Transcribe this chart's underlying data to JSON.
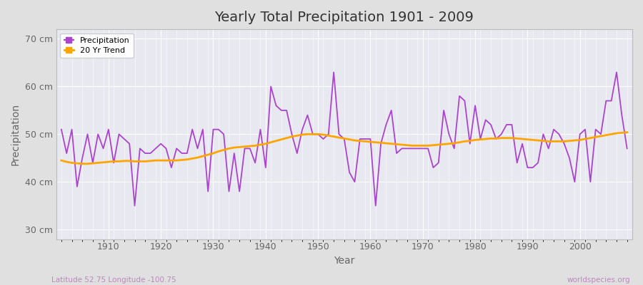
{
  "title": "Yearly Total Precipitation 1901 - 2009",
  "xlabel": "Year",
  "ylabel": "Precipitation",
  "footnote_left": "Latitude 52.75 Longitude -100.75",
  "footnote_right": "worldspecies.org",
  "line_color": "#AA44CC",
  "trend_color": "#FFA500",
  "fig_bg_color": "#E0E0E0",
  "plot_bg_color": "#E8E8F0",
  "ylim": [
    28,
    72
  ],
  "yticks": [
    30,
    40,
    50,
    60,
    70
  ],
  "ytick_labels": [
    "30 cm",
    "40 cm",
    "50 cm",
    "60 cm",
    "70 cm"
  ],
  "years": [
    1901,
    1902,
    1903,
    1904,
    1905,
    1906,
    1907,
    1908,
    1909,
    1910,
    1911,
    1912,
    1913,
    1914,
    1915,
    1916,
    1917,
    1918,
    1919,
    1920,
    1921,
    1922,
    1923,
    1924,
    1925,
    1926,
    1927,
    1928,
    1929,
    1930,
    1931,
    1932,
    1933,
    1934,
    1935,
    1936,
    1937,
    1938,
    1939,
    1940,
    1941,
    1942,
    1943,
    1944,
    1945,
    1946,
    1947,
    1948,
    1949,
    1950,
    1951,
    1952,
    1953,
    1954,
    1955,
    1956,
    1957,
    1958,
    1959,
    1960,
    1961,
    1962,
    1963,
    1964,
    1965,
    1966,
    1967,
    1968,
    1969,
    1970,
    1971,
    1972,
    1973,
    1974,
    1975,
    1976,
    1977,
    1978,
    1979,
    1980,
    1981,
    1982,
    1983,
    1984,
    1985,
    1986,
    1987,
    1988,
    1989,
    1990,
    1991,
    1992,
    1993,
    1994,
    1995,
    1996,
    1997,
    1998,
    1999,
    2000,
    2001,
    2002,
    2003,
    2004,
    2005,
    2006,
    2007,
    2008,
    2009
  ],
  "precip": [
    51,
    46,
    51,
    39,
    45,
    50,
    44,
    50,
    47,
    51,
    44,
    50,
    49,
    48,
    35,
    47,
    46,
    46,
    47,
    48,
    47,
    43,
    47,
    46,
    46,
    51,
    47,
    51,
    38,
    51,
    51,
    50,
    38,
    46,
    38,
    47,
    47,
    44,
    51,
    43,
    60,
    56,
    55,
    55,
    50,
    46,
    51,
    54,
    50,
    50,
    49,
    50,
    63,
    50,
    49,
    42,
    40,
    49,
    49,
    49,
    35,
    48,
    52,
    55,
    46,
    47,
    47,
    47,
    47,
    47,
    47,
    43,
    44,
    55,
    50,
    47,
    58,
    57,
    48,
    56,
    49,
    53,
    52,
    49,
    50,
    52,
    52,
    44,
    48,
    43,
    43,
    44,
    50,
    47,
    51,
    50,
    48,
    45,
    40,
    50,
    51,
    40,
    51,
    50,
    57,
    57,
    63,
    54,
    47
  ],
  "trend_vals": [
    44.5,
    44.2,
    44.0,
    43.9,
    43.8,
    43.8,
    43.9,
    44.0,
    44.1,
    44.2,
    44.3,
    44.3,
    44.4,
    44.4,
    44.3,
    44.3,
    44.3,
    44.4,
    44.5,
    44.5,
    44.5,
    44.5,
    44.5,
    44.6,
    44.7,
    44.9,
    45.1,
    45.4,
    45.7,
    46.0,
    46.4,
    46.7,
    47.0,
    47.2,
    47.3,
    47.4,
    47.5,
    47.6,
    47.8,
    48.0,
    48.3,
    48.6,
    48.9,
    49.2,
    49.5,
    49.7,
    49.9,
    50.0,
    50.0,
    50.0,
    49.9,
    49.7,
    49.5,
    49.3,
    49.1,
    48.9,
    48.7,
    48.6,
    48.5,
    48.4,
    48.3,
    48.2,
    48.1,
    48.0,
    47.9,
    47.8,
    47.7,
    47.6,
    47.6,
    47.6,
    47.6,
    47.7,
    47.8,
    47.9,
    48.0,
    48.1,
    48.3,
    48.5,
    48.6,
    48.8,
    48.9,
    49.0,
    49.1,
    49.1,
    49.2,
    49.2,
    49.2,
    49.1,
    49.0,
    48.9,
    48.8,
    48.7,
    48.6,
    48.5,
    48.5,
    48.5,
    48.5,
    48.6,
    48.7,
    48.8,
    49.0,
    49.2,
    49.4,
    49.6,
    49.8,
    50.0,
    50.2,
    50.3,
    50.4
  ]
}
